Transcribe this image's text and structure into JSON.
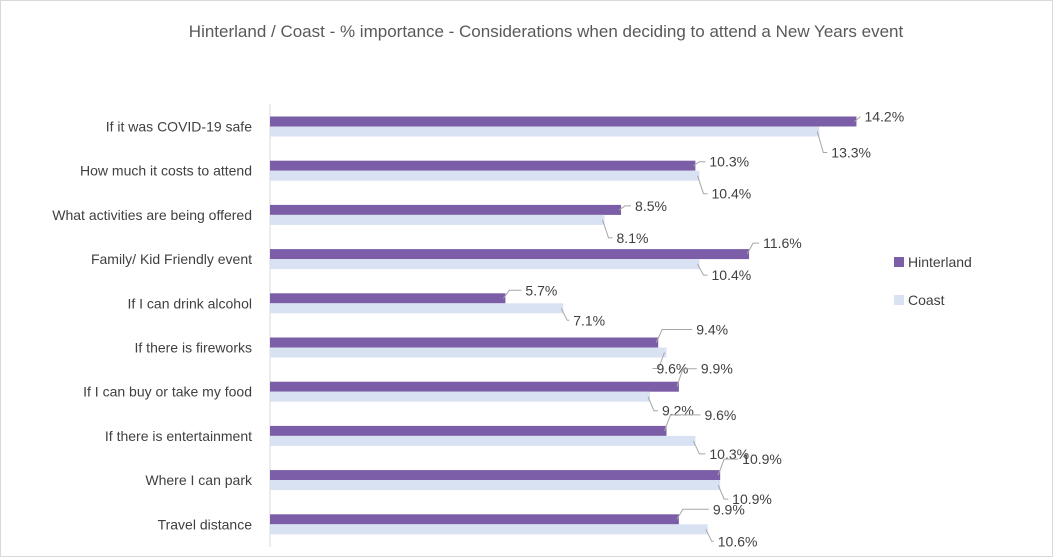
{
  "chart_data": {
    "type": "bar",
    "orientation": "horizontal",
    "title": "Hinterland / Coast  - % importance - Considerations when deciding to attend a New Years event",
    "categories": [
      "If it was COVID-19 safe",
      "How much it costs to attend",
      "What activities are being offered",
      "Family/ Kid Friendly event",
      "If I can drink alcohol",
      "If there is fireworks",
      "If I can buy or take my food",
      "If there is entertainment",
      "Where I can park",
      "Travel distance"
    ],
    "series": [
      {
        "name": "Hinterland",
        "color": "#7b5ea7",
        "values": [
          14.2,
          10.3,
          8.5,
          11.6,
          5.7,
          9.4,
          9.9,
          9.6,
          10.9,
          9.9
        ],
        "labels": [
          "14.2%",
          "10.3%",
          "8.5%",
          "11.6%",
          "5.7%",
          "9.4%",
          "9.9%",
          "9.6%",
          "10.9%",
          "9.9%"
        ]
      },
      {
        "name": "Coast",
        "color": "#d9e2f3",
        "values": [
          13.3,
          10.4,
          8.1,
          10.4,
          7.1,
          9.6,
          9.2,
          10.3,
          10.9,
          10.6
        ],
        "labels": [
          "13.3%",
          "10.4%",
          "8.1%",
          "10.4%",
          "7.1%",
          "9.6%",
          "9.2%",
          "10.3%",
          "10.9%",
          "10.6%"
        ]
      }
    ],
    "xlim": [
      0,
      16
    ],
    "grid": false,
    "legend_position": "right"
  }
}
